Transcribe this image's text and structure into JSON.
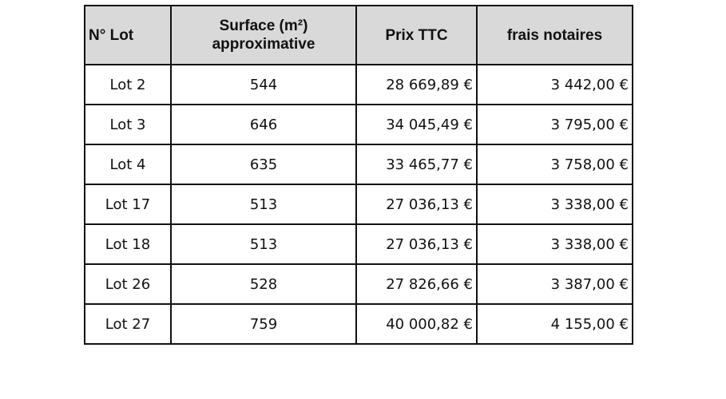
{
  "table": {
    "headers": {
      "lot": "N° Lot",
      "surface_line1": "Surface (m²)",
      "surface_line2": "approximative",
      "price": "Prix TTC",
      "fees": "frais notaires"
    },
    "rows": [
      {
        "lot": "Lot 2",
        "surface": "544",
        "price": "28 669,89 €",
        "fees": "3 442,00 €"
      },
      {
        "lot": "Lot 3",
        "surface": "646",
        "price": "34 045,49 €",
        "fees": "3 795,00 €"
      },
      {
        "lot": "Lot 4",
        "surface": "635",
        "price": "33 465,77 €",
        "fees": "3 758,00 €"
      },
      {
        "lot": "Lot 17",
        "surface": "513",
        "price": "27 036,13 €",
        "fees": "3 338,00 €"
      },
      {
        "lot": "Lot 18",
        "surface": "513",
        "price": "27 036,13 €",
        "fees": "3 338,00 €"
      },
      {
        "lot": "Lot 26",
        "surface": "528",
        "price": "27 826,66 €",
        "fees": "3 387,00 €"
      },
      {
        "lot": "Lot 27",
        "surface": "759",
        "price": "40 000,82 €",
        "fees": "4 155,00 €"
      }
    ]
  }
}
